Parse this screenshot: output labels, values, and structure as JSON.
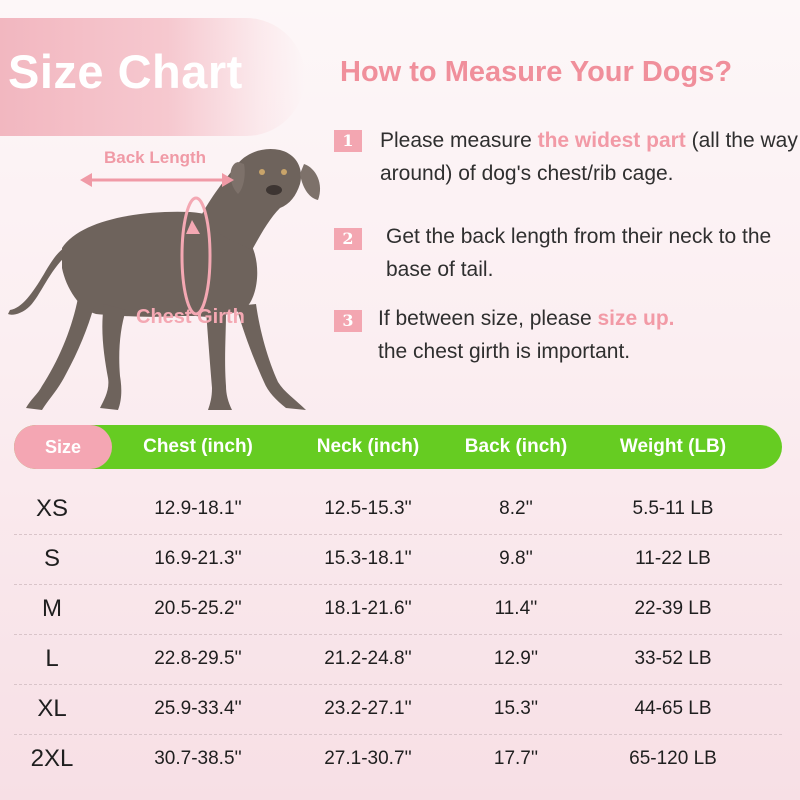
{
  "banner": {
    "title": "Size Chart"
  },
  "headline": "How to Measure Your Dogs?",
  "steps": [
    {
      "num": "1",
      "pre": "Please measure ",
      "highlight": "the widest part",
      "post": " (all the way around) of dog's chest/rib cage."
    },
    {
      "num": "2",
      "pre": "Get the back length from their neck to the base of tail.",
      "highlight": "",
      "post": ""
    },
    {
      "num": "3",
      "pre": "If between size, please ",
      "highlight": "size up.",
      "post": " the chest girth is  important."
    }
  ],
  "dog_labels": {
    "back": "Back Length",
    "chest": "Chest Girth"
  },
  "colors": {
    "pink": "#f4a6b3",
    "green": "#66cc22",
    "dog": "#6e635c"
  },
  "table": {
    "headers": [
      "Size",
      "Chest (inch)",
      "Neck (inch)",
      "Back (inch)",
      "Weight (LB)"
    ],
    "rows": [
      [
        "XS",
        "12.9-18.1''",
        "12.5-15.3''",
        "8.2''",
        "5.5-11 LB"
      ],
      [
        "S",
        "16.9-21.3''",
        "15.3-18.1''",
        "9.8''",
        "11-22 LB"
      ],
      [
        "M",
        "20.5-25.2''",
        "18.1-21.6''",
        "11.4''",
        "22-39 LB"
      ],
      [
        "L",
        "22.8-29.5''",
        "21.2-24.8''",
        "12.9''",
        "33-52 LB"
      ],
      [
        "XL",
        "25.9-33.4''",
        "23.2-27.1''",
        "15.3''",
        "44-65 LB"
      ],
      [
        "2XL",
        "30.7-38.5''",
        "27.1-30.7''",
        "17.7''",
        "65-120 LB"
      ]
    ]
  }
}
